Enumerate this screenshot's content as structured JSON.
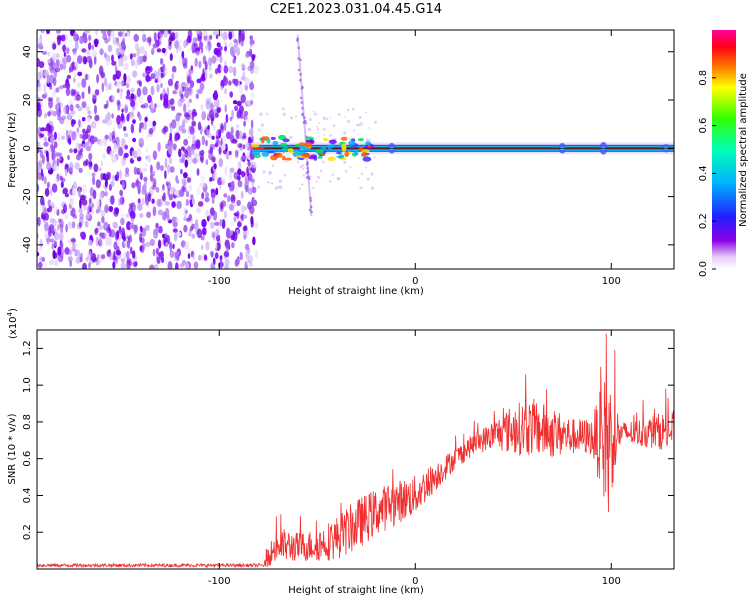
{
  "figure": {
    "title": "C2E1.2023.031.04.45.G14"
  },
  "chart_data": [
    {
      "type": "heatmap",
      "xlabel": "Height of straight line (km)",
      "ylabel": "Frequency (Hz)",
      "xlim": [
        -193,
        132
      ],
      "ylim": [
        -50,
        49
      ],
      "xticks": [
        -100,
        0,
        100
      ],
      "yticks": [
        -40,
        -20,
        0,
        20,
        40
      ],
      "noise_region_x": [
        -193,
        -83
      ],
      "signal_line": {
        "frequency": 0,
        "x_start": -83,
        "x_end": 132
      },
      "faint_streak": {
        "x_top": -60,
        "y_top": 47,
        "x_bottom": -53,
        "y_bottom": -28
      },
      "colorbar": {
        "label": "Normalized spectral amplitude",
        "range": [
          0,
          1
        ],
        "ticks": [
          "0.0",
          "0.2",
          "0.4",
          "0.6",
          "0.8"
        ]
      },
      "grid": false
    },
    {
      "type": "line",
      "xlabel": "Height of straight line (km)",
      "ylabel": "SNR (10 * v/v)",
      "y_multiplier": "(x10",
      "y_multiplier_exp": "4",
      "y_multiplier_close": ")",
      "xlim": [
        -193,
        132
      ],
      "ylim": [
        0,
        1.3
      ],
      "xticks": [
        -100,
        0,
        100
      ],
      "yticks": [
        "0.2",
        "0.4",
        "0.6",
        "0.8",
        "1.0",
        "1.2"
      ],
      "series": [
        {
          "color": "#f03030",
          "envelope_x": [
            -193,
            -77,
            -76,
            -70,
            -60,
            -50,
            -40,
            -30,
            -20,
            -10,
            0,
            10,
            20,
            30,
            40,
            50,
            60,
            70,
            80,
            90,
            98,
            105,
            115,
            125,
            132
          ],
          "envelope_mean": [
            0.02,
            0.02,
            0.06,
            0.13,
            0.12,
            0.13,
            0.17,
            0.24,
            0.31,
            0.36,
            0.4,
            0.5,
            0.6,
            0.68,
            0.73,
            0.76,
            0.77,
            0.74,
            0.72,
            0.72,
            0.7,
            0.74,
            0.74,
            0.75,
            0.75
          ],
          "envelope_amp": [
            0.01,
            0.01,
            0.05,
            0.1,
            0.08,
            0.09,
            0.12,
            0.14,
            0.13,
            0.12,
            0.11,
            0.08,
            0.06,
            0.06,
            0.08,
            0.14,
            0.16,
            0.14,
            0.1,
            0.1,
            0.4,
            0.06,
            0.08,
            0.1,
            0.12
          ],
          "peaks": [
            {
              "x": 97.5,
              "y": 1.28
            },
            {
              "x": 98.5,
              "y": 0.31
            }
          ]
        }
      ],
      "grid": false
    }
  ]
}
